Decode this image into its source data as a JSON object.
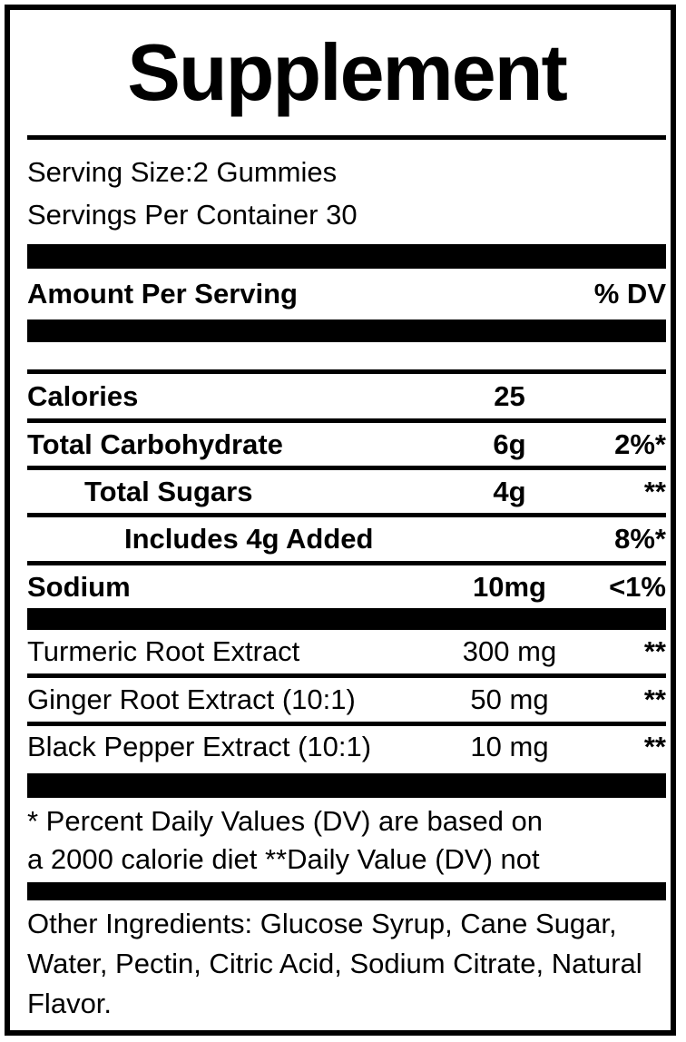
{
  "label": {
    "title": "Supplement",
    "serving": {
      "serving_size": "Serving Size:2 Gummies",
      "servings_per_container": "Servings Per Container 30"
    },
    "header": {
      "amount_per_serving": "Amount Per Serving",
      "percent_dv": "% DV"
    },
    "nutrients": [
      {
        "name": "Calories",
        "amount": "25",
        "dv": ""
      },
      {
        "name": "Total Carbohydrate",
        "amount": "6g",
        "dv": "2%*"
      },
      {
        "name": "Total Sugars",
        "amount": "4g",
        "dv": "**"
      },
      {
        "name": "Includes 4g Added",
        "amount": "",
        "dv": "8%*"
      },
      {
        "name": "Sodium",
        "amount": "10mg",
        "dv": "<1%"
      }
    ],
    "ingredients": [
      {
        "name": "Turmeric Root Extract",
        "amount": "300 mg",
        "dv": "**"
      },
      {
        "name": "Ginger Root Extract (10:1)",
        "amount": "50 mg",
        "dv": "**"
      },
      {
        "name": "Black Pepper Extract (10:1)",
        "amount": "10 mg",
        "dv": "**"
      }
    ],
    "footnote_lines": [
      "* Percent Daily Values (DV) are based on",
      "a 2000 calorie diet **Daily Value (DV) not"
    ],
    "other_ingredients_lines": [
      "Other Ingredients:  Glucose Syrup, Cane Sugar,",
      "Water, Pectin, Citric Acid, Sodium Citrate, Natural",
      "Flavor."
    ],
    "colors": {
      "text": "#000000",
      "background": "#ffffff",
      "bar": "#000000"
    }
  }
}
